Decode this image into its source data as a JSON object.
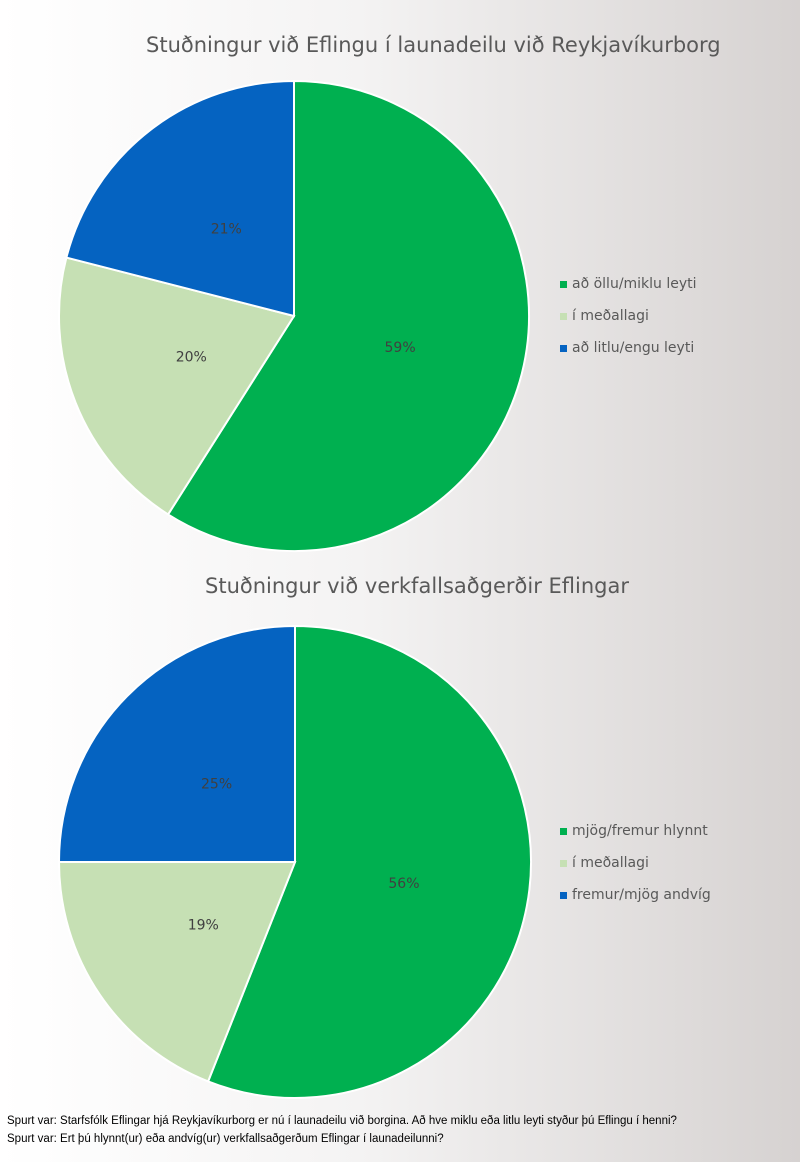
{
  "colors": {
    "green": "#00b050",
    "light_green": "#c6e0b4",
    "blue": "#0563c1",
    "title_text": "#595959"
  },
  "chart_data": [
    {
      "type": "pie",
      "title": "Stuðningur við Eflingu í launadeilu við Reykjavíkurborg",
      "legend_position": "right",
      "categories": [
        "að öllu/miklu leyti",
        "í meðallagi",
        "að litlu/engu leyti"
      ],
      "values": [
        59,
        20,
        21
      ],
      "labels": [
        "59%",
        "20%",
        "21%"
      ],
      "colors": [
        "#00b050",
        "#c6e0b4",
        "#0563c1"
      ]
    },
    {
      "type": "pie",
      "title": "Stuðningur við verkfallsaðgerðir Eflingar",
      "legend_position": "right",
      "categories": [
        "mjög/fremur hlynnt",
        "í meðallagi",
        "fremur/mjög andvíg"
      ],
      "values": [
        56,
        19,
        25
      ],
      "labels": [
        "56%",
        "19%",
        "25%"
      ],
      "colors": [
        "#00b050",
        "#c6e0b4",
        "#0563c1"
      ]
    }
  ],
  "footnotes": [
    "Spurt var: Starfsfólk Eflingar hjá Reykjavíkurborg er nú í launadeilu við borgina. Að hve miklu eða litlu leyti styður þú Eflingu í henni?",
    "Spurt var: Ert þú hlynnt(ur) eða andvíg(ur) verkfallsaðgerðum Eflingar í launadeilunni?"
  ]
}
